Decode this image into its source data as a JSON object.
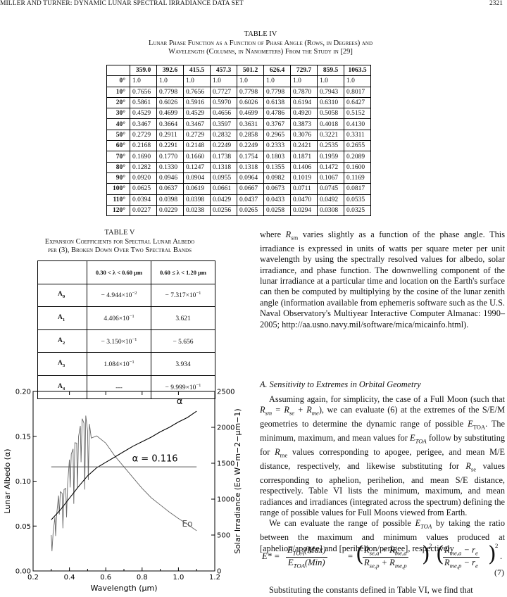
{
  "header": {
    "running_head": "MILLER AND TURNER: DYNAMIC LUNAR SPECTRAL IRRADIANCE DATA SET",
    "page_number": "2321"
  },
  "table4": {
    "label": "TABLE IV",
    "caption_lines": [
      "Lunar Phase Function as a Function of Phase Angle (Rows, in Degrees) and",
      "Wavelength (Columns, in Nanometers) From the Study in [29]"
    ],
    "columns": [
      "359.0",
      "392.6",
      "415.5",
      "457.3",
      "501.2",
      "626.4",
      "729.7",
      "859.5",
      "1063.5"
    ],
    "rows": [
      {
        "angle": "0°",
        "values": [
          "1.0",
          "1.0",
          "1.0",
          "1.0",
          "1.0",
          "1.0",
          "1.0",
          "1.0",
          "1.0"
        ]
      },
      {
        "angle": "10°",
        "values": [
          "0.7656",
          "0.7798",
          "0.7656",
          "0.7727",
          "0.7798",
          "0.7798",
          "0.7870",
          "0.7943",
          "0.8017"
        ]
      },
      {
        "angle": "20°",
        "values": [
          "0.5861",
          "0.6026",
          "0.5916",
          "0.5970",
          "0.6026",
          "0.6138",
          "0.6194",
          "0.6310",
          "0.6427"
        ]
      },
      {
        "angle": "30°",
        "values": [
          "0.4529",
          "0.4699",
          "0.4529",
          "0.4656",
          "0.4699",
          "0.4786",
          "0.4920",
          "0.5058",
          "0.5152"
        ]
      },
      {
        "angle": "40°",
        "values": [
          "0.3467",
          "0.3664",
          "0.3467",
          "0.3597",
          "0.3631",
          "0.3767",
          "0.3873",
          "0.4018",
          "0.4130"
        ]
      },
      {
        "angle": "50°",
        "values": [
          "0.2729",
          "0.2911",
          "0.2729",
          "0.2832",
          "0.2858",
          "0.2965",
          "0.3076",
          "0.3221",
          "0.3311"
        ]
      },
      {
        "angle": "60°",
        "values": [
          "0.2168",
          "0.2291",
          "0.2148",
          "0.2249",
          "0.2249",
          "0.2333",
          "0.2421",
          "0.2535",
          "0.2655"
        ]
      },
      {
        "angle": "70°",
        "values": [
          "0.1690",
          "0.1770",
          "0.1660",
          "0.1738",
          "0.1754",
          "0.1803",
          "0.1871",
          "0.1959",
          "0.2089"
        ]
      },
      {
        "angle": "80°",
        "values": [
          "0.1282",
          "0.1330",
          "0.1247",
          "0.1318",
          "0.1318",
          "0.1355",
          "0.1406",
          "0.1472",
          "0.1600"
        ]
      },
      {
        "angle": "90°",
        "values": [
          "0.0920",
          "0.0946",
          "0.0904",
          "0.0955",
          "0.0964",
          "0.0982",
          "0.1019",
          "0.1067",
          "0.1169"
        ]
      },
      {
        "angle": "100°",
        "values": [
          "0.0625",
          "0.0637",
          "0.0619",
          "0.0661",
          "0.0667",
          "0.0673",
          "0.0711",
          "0.0745",
          "0.0817"
        ]
      },
      {
        "angle": "110°",
        "values": [
          "0.0394",
          "0.0398",
          "0.0398",
          "0.0429",
          "0.0437",
          "0.0433",
          "0.0470",
          "0.0492",
          "0.0535"
        ]
      },
      {
        "angle": "120°",
        "values": [
          "0.0227",
          "0.0229",
          "0.0238",
          "0.0256",
          "0.0265",
          "0.0258",
          "0.0294",
          "0.0308",
          "0.0325"
        ]
      }
    ]
  },
  "table5": {
    "label": "TABLE V",
    "caption_lines": [
      "Expansion Coefficients for Spectral Lunar Albedo",
      "per (3), Broken Down Over Two Spectral Bands"
    ],
    "col1": "0.30 < λ < 0.60 μm",
    "col2": "0.60 ≤ λ < 1.20 μm",
    "rows": [
      {
        "base": "A",
        "sub": "0",
        "m1": "− 4.944×10",
        "e1": "−2",
        "m2": "− 7.317×10",
        "e2": "−1"
      },
      {
        "base": "A",
        "sub": "1",
        "m1": "4.406×10",
        "e1": "−1",
        "m2": "3.621",
        "e2": ""
      },
      {
        "base": "A",
        "sub": "2",
        "m1": "− 3.150×10",
        "e1": "−1",
        "m2": "− 5.656",
        "e2": ""
      },
      {
        "base": "A",
        "sub": "3",
        "m1": "1.084×10",
        "e1": "−1",
        "m2": "3.934",
        "e2": ""
      },
      {
        "base": "A",
        "sub": "4",
        "m1": "---",
        "e1": "",
        "m2": "− 9.999×10",
        "e2": "−1"
      }
    ]
  },
  "text": {
    "p1_a": "where ",
    "p1_sym": "R",
    "p1_sub": "sm",
    "p1_b": " varies slightly as a function of the phase angle. This irradiance is expressed in units of watts per square meter per unit wavelength by using the spectrally resolved values for albedo, solar irradiance, and phase function. The downwelling component of the lunar irradiance at a particular time and location on the Earth's surface can then be computed by multiplying by the cosine of the lunar zenith angle (information available from ephemeris software such as the U.S. Naval Observatory's Multiyear Interactive Computer Almanac: 1990–2005; http://aa.usno.navy.mil/software/mica/micainfo.html).",
    "section_heading": "A.  Sensitivity to Extremes in Orbital Geometry",
    "p2_a": "Assuming again, for simplicity, the case of a Full Moon (such that ",
    "p2_eq": "R",
    "p2_eq_tail": "sm = Rse + Rme",
    "p2_b": "), we can evaluate (6) at the extremes of the S/E/M geometries to determine the dynamic range of possible ",
    "p2_etoa": "E",
    "p2_etoa_sub": "TOA",
    "p2_c": ". The minimum, maximum, and mean values for ",
    "p2_d": " follow by substituting for ",
    "p2_rme": "R",
    "p2_rme_sub": "me",
    "p2_e": " values corresponding to apogee, perigee, and mean M/E distance, respectively, and likewise substituting for ",
    "p2_rse_sub": "se",
    "p2_f": " values corresponding to aphelion, perihelion, and mean S/E distance, respectively. Table VI lists the minimum, maximum, and mean radiances and irradiances (integrated across the spectrum) defining the range of possible values for Full Moons viewed from Earth.",
    "p3_a": "We can evaluate the range of possible ",
    "p3_b": " by taking the ratio between the maximum and minimum values produced at [aphelion/apogee] and [perihelion/perigee], respectively",
    "eq_number": "(7)",
    "p4": "Substituting the constants defined in Table VI, we find that"
  },
  "equation": {
    "lhs": "E* =",
    "f1_num": "ETOA(Max)",
    "f1_den": "ETOA(Min)",
    "eq": "=",
    "f2_num": "Rse,a + Rme,a",
    "f2_den": "Rse,p + Rme,p",
    "f3_num": "Rme,a − re",
    "f3_den": "Rme,p − re",
    "pow": "2",
    "end": "."
  },
  "chart_data": {
    "type": "line",
    "xlabel": "Wavelength (μm)",
    "ylabel_left": "Lunar Albedo (α)",
    "ylabel_right": "Solar Irradiance (Eo W−m−2−μm−1)",
    "xlim": [
      0.2,
      1.2
    ],
    "ylim_left": [
      0.0,
      0.2
    ],
    "ylim_right": [
      0,
      2500
    ],
    "x_ticks": [
      "0.2",
      "0.4",
      "0.6",
      "0.8",
      "1.0",
      "1.2"
    ],
    "y_left_ticks": [
      "0.00",
      "0.05",
      "0.10",
      "0.15",
      "0.20"
    ],
    "y_right_ticks": [
      "0",
      "500",
      "1000",
      "1500",
      "2000",
      "2500"
    ],
    "series": [
      {
        "name": "α",
        "axis": "left",
        "x": [
          0.3,
          0.35,
          0.4,
          0.45,
          0.5,
          0.55,
          0.6,
          0.65,
          0.7,
          0.75,
          0.8,
          0.85,
          0.9,
          0.95,
          1.0,
          1.05,
          1.1
        ],
        "y": [
          0.057,
          0.068,
          0.081,
          0.094,
          0.106,
          0.115,
          0.121,
          0.127,
          0.133,
          0.139,
          0.144,
          0.149,
          0.155,
          0.16,
          0.166,
          0.171,
          0.178
        ]
      },
      {
        "name": "Eo",
        "axis": "right",
        "x": [
          0.3,
          0.32,
          0.34,
          0.36,
          0.38,
          0.4,
          0.42,
          0.44,
          0.46,
          0.48,
          0.5,
          0.52,
          0.55,
          0.6,
          0.65,
          0.7,
          0.75,
          0.8,
          0.85,
          0.9,
          0.95,
          1.0,
          1.05,
          1.1
        ],
        "y": [
          500,
          750,
          1050,
          1080,
          1150,
          1550,
          1700,
          1780,
          2020,
          2060,
          1950,
          1850,
          1880,
          1780,
          1600,
          1450,
          1300,
          1150,
          1020,
          920,
          820,
          730,
          650,
          560
        ]
      }
    ],
    "mean_line": {
      "label": "α = 0.116",
      "value": 0.116,
      "x_range": [
        0.3,
        1.1
      ]
    },
    "annotations": [
      "α",
      "α = 0.116",
      "Eo"
    ]
  }
}
